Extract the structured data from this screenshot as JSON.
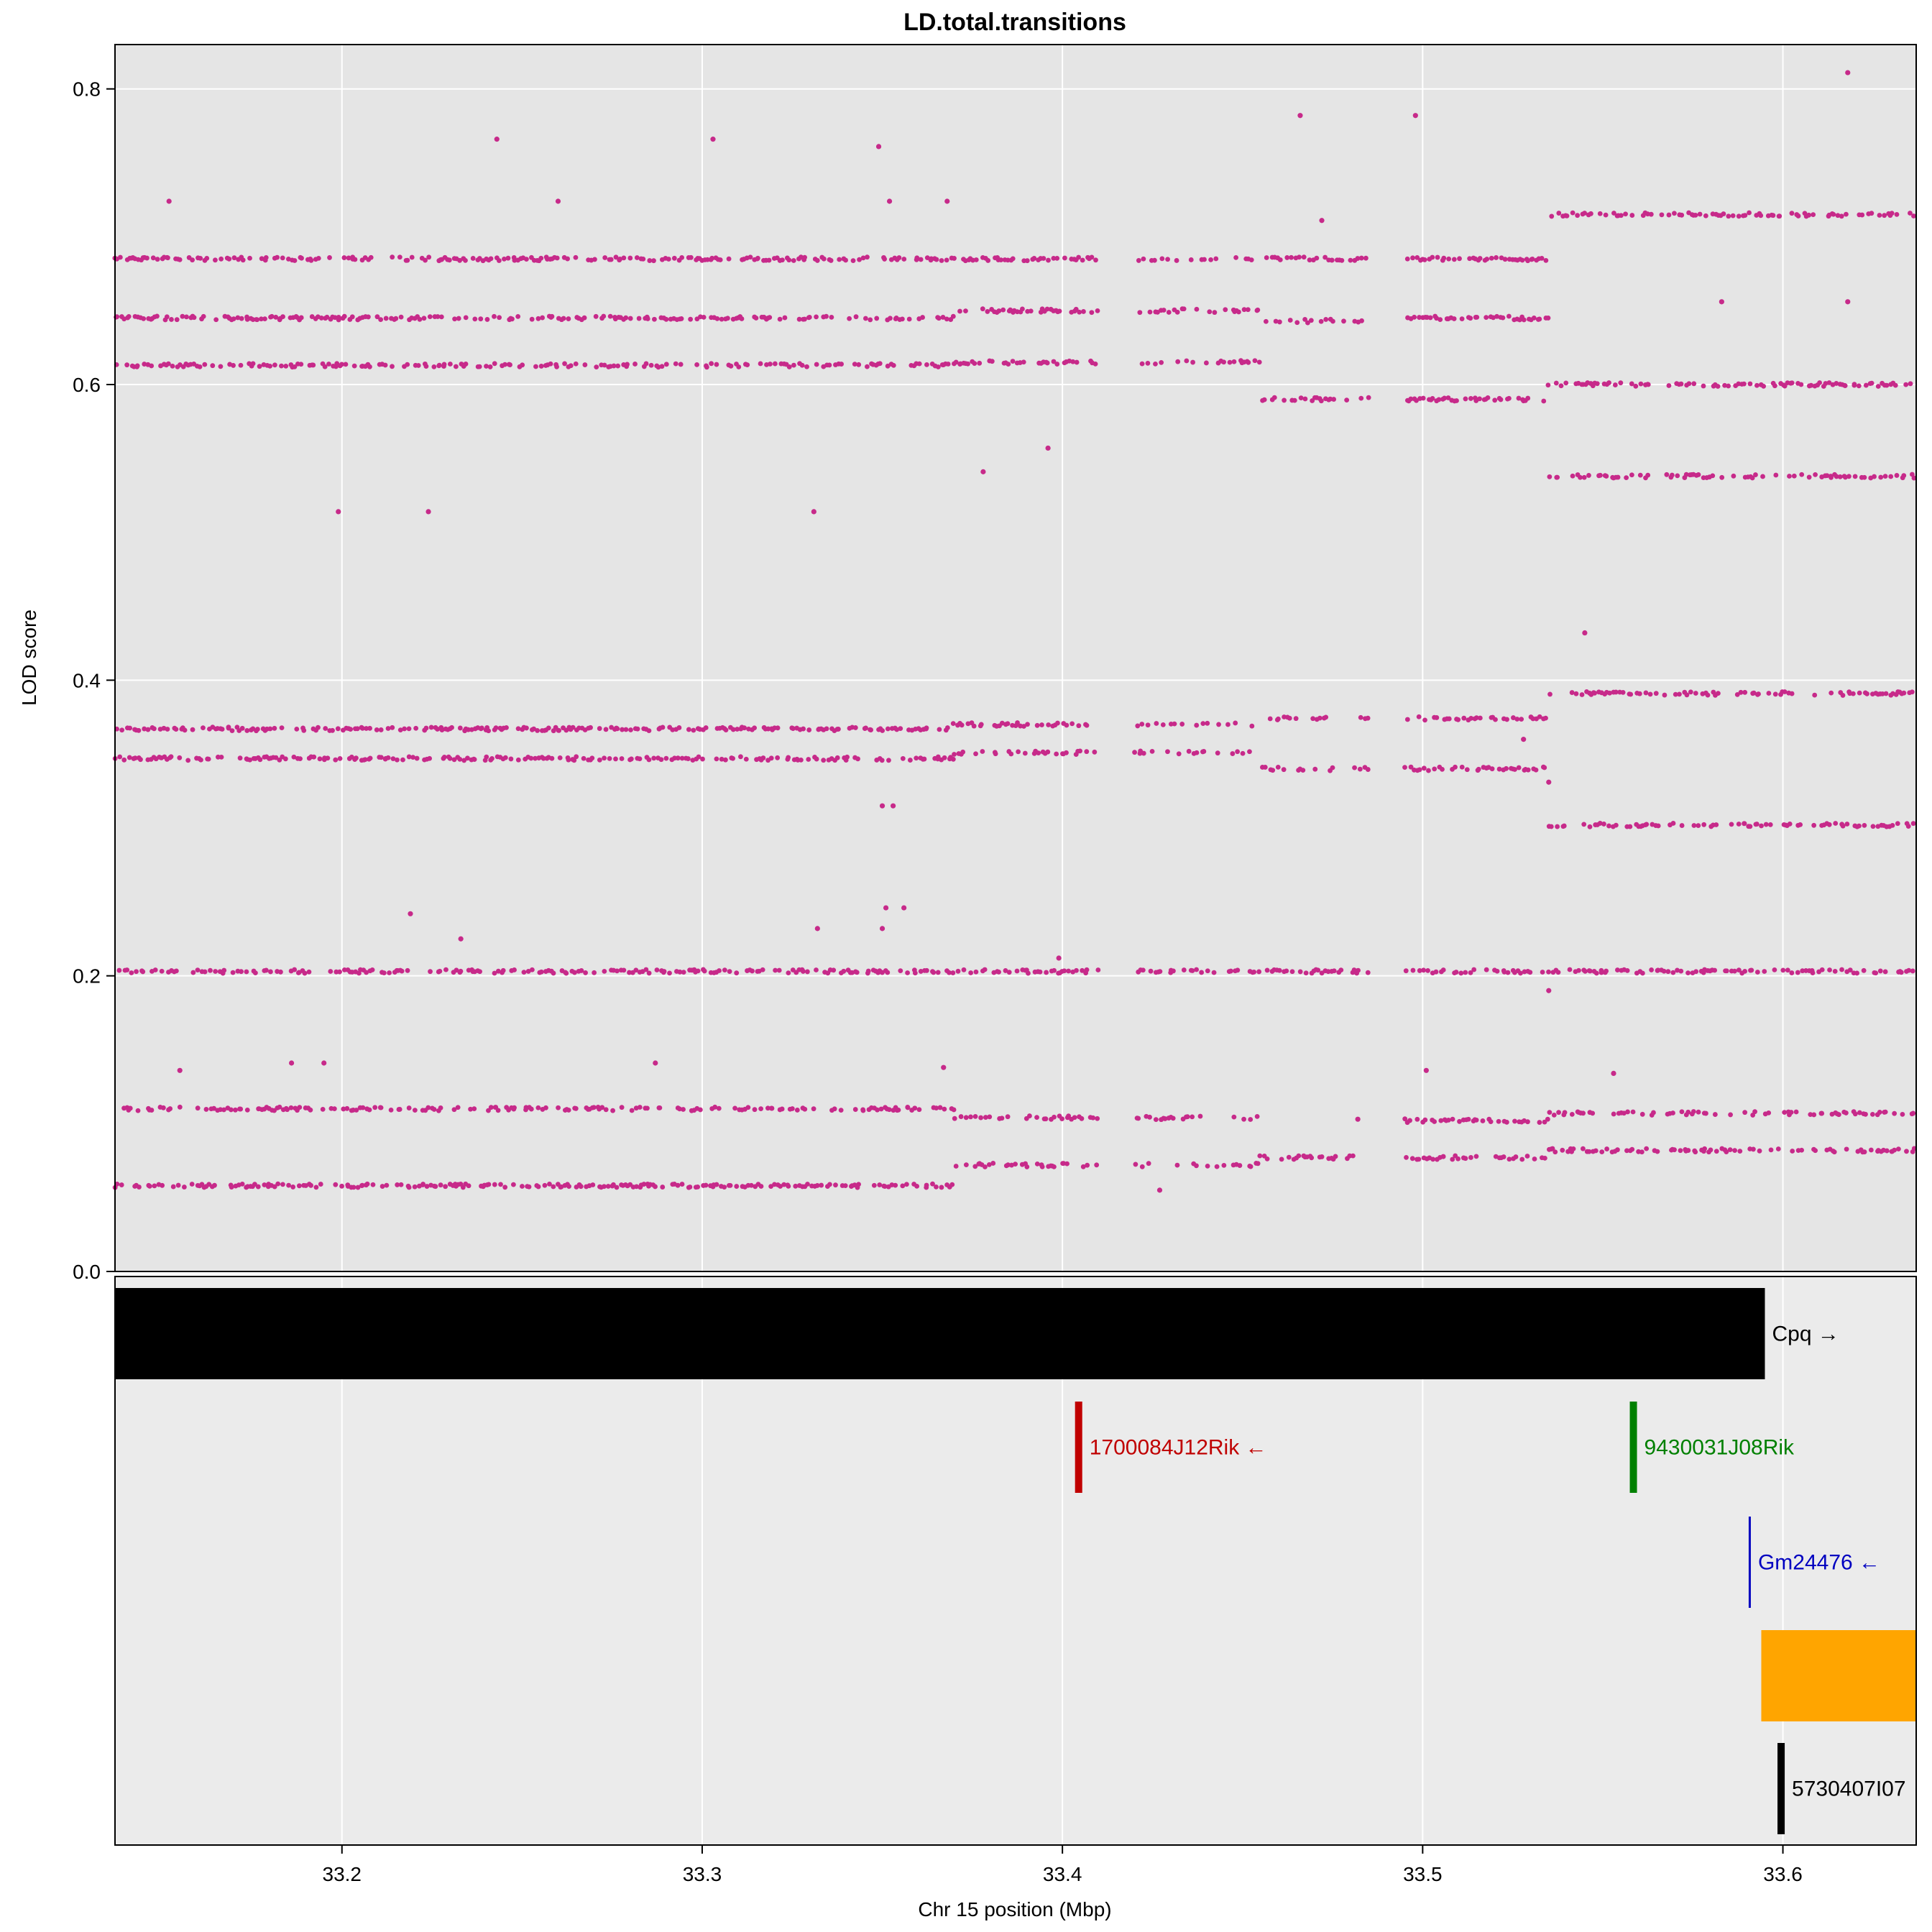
{
  "chart_data": [
    {
      "type": "scatter",
      "title": "LD.total.transitions",
      "ylabel": "LOD score",
      "xlim": [
        33.137,
        33.637
      ],
      "ylim": [
        0.0,
        0.83
      ],
      "x_ticks": [
        33.2,
        33.3,
        33.4,
        33.5,
        33.6
      ],
      "y_ticks": [
        0.0,
        0.2,
        0.4,
        0.6,
        0.8
      ],
      "x_tick_labels": [
        "33.2",
        "33.3",
        "33.4",
        "33.5",
        "33.6"
      ],
      "y_tick_labels": [
        "0.0",
        "0.2",
        "0.4",
        "0.6",
        "0.8"
      ],
      "grid": true,
      "point_color": "#C72A8A",
      "panel_background": "#E5E5E5",
      "bands": [
        {
          "from": 33.137,
          "to": 33.37,
          "values": [
            0.058,
            0.11,
            0.203,
            0.347,
            0.367,
            0.613,
            0.645,
            0.685
          ],
          "density": 0.55
        },
        {
          "from": 33.37,
          "to": 33.41,
          "values": [
            0.072,
            0.104,
            0.203,
            0.351,
            0.37,
            0.615,
            0.65,
            0.685
          ],
          "density": 0.5
        },
        {
          "from": 33.42,
          "to": 33.455,
          "values": [
            0.072,
            0.104,
            0.203,
            0.351,
            0.37,
            0.615,
            0.65,
            0.685
          ],
          "density": 0.35
        },
        {
          "from": 33.455,
          "to": 33.485,
          "values": [
            0.077,
            0.203,
            0.34,
            0.374,
            0.59,
            0.643,
            0.685
          ],
          "density": 0.45
        },
        {
          "from": 33.495,
          "to": 33.535,
          "values": [
            0.077,
            0.102,
            0.203,
            0.34,
            0.374,
            0.59,
            0.645,
            0.685
          ],
          "density": 0.55
        },
        {
          "from": 33.535,
          "to": 33.637,
          "values": [
            0.082,
            0.107,
            0.203,
            0.302,
            0.391,
            0.538,
            0.6,
            0.715
          ],
          "density": 0.5
        }
      ],
      "outliers": [
        [
          33.152,
          0.724
        ],
        [
          33.243,
          0.766
        ],
        [
          33.26,
          0.724
        ],
        [
          33.303,
          0.766
        ],
        [
          33.349,
          0.761
        ],
        [
          33.352,
          0.724
        ],
        [
          33.368,
          0.724
        ],
        [
          33.466,
          0.782
        ],
        [
          33.498,
          0.782
        ],
        [
          33.472,
          0.711
        ],
        [
          33.618,
          0.811
        ],
        [
          33.618,
          0.656
        ],
        [
          33.583,
          0.656
        ],
        [
          33.396,
          0.557
        ],
        [
          33.378,
          0.541
        ],
        [
          33.199,
          0.514
        ],
        [
          33.224,
          0.514
        ],
        [
          33.331,
          0.514
        ],
        [
          33.545,
          0.432
        ],
        [
          33.219,
          0.242
        ],
        [
          33.233,
          0.225
        ],
        [
          33.332,
          0.232
        ],
        [
          33.35,
          0.232
        ],
        [
          33.35,
          0.315
        ],
        [
          33.353,
          0.315
        ],
        [
          33.351,
          0.246
        ],
        [
          33.356,
          0.246
        ],
        [
          33.399,
          0.212
        ],
        [
          33.535,
          0.19
        ],
        [
          33.155,
          0.136
        ],
        [
          33.186,
          0.141
        ],
        [
          33.195,
          0.141
        ],
        [
          33.287,
          0.141
        ],
        [
          33.367,
          0.138
        ],
        [
          33.501,
          0.136
        ],
        [
          33.553,
          0.134
        ],
        [
          33.427,
          0.055
        ],
        [
          33.528,
          0.36
        ],
        [
          33.535,
          0.331
        ],
        [
          33.482,
          0.103
        ]
      ]
    },
    {
      "type": "gene-track",
      "xlabel": "Chr 15 position (Mbp)",
      "genes": [
        {
          "label": "Cpq →",
          "start": 33.137,
          "end": 33.595,
          "row": 0,
          "color": "#000000"
        },
        {
          "label": "1700084J12Rik ←",
          "start": 33.4035,
          "end": 33.4055,
          "row": 1,
          "color": "#C00000"
        },
        {
          "label": "9430031J08Rik",
          "start": 33.5575,
          "end": 33.559,
          "row": 1,
          "color": "#008000"
        },
        {
          "label": "Gm24476 ←",
          "start": 33.5905,
          "end": 33.591,
          "row": 2,
          "color": "#0000C0"
        },
        {
          "label": "",
          "start": 33.594,
          "end": 33.637,
          "row": 3,
          "color": "#FFA500"
        },
        {
          "label": "5730407I07",
          "start": 33.5985,
          "end": 33.6005,
          "row": 4,
          "color": "#000000"
        }
      ]
    }
  ]
}
